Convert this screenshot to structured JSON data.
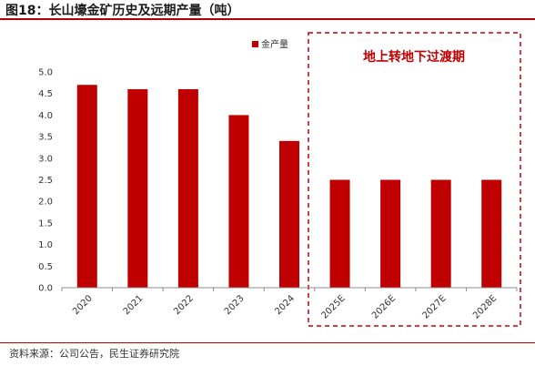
{
  "figure": {
    "title": "图18：长山壕金矿历史及远期产量（吨）",
    "source": "资料来源：公司公告，民生证券研究院"
  },
  "chart_data": {
    "type": "bar",
    "title": "",
    "xlabel": "",
    "ylabel": "",
    "categories": [
      "2020",
      "2021",
      "2022",
      "2023",
      "2024",
      "2025E",
      "2026E",
      "2027E",
      "2028E"
    ],
    "series": [
      {
        "name": "金产量",
        "values": [
          4.7,
          4.6,
          4.6,
          4.0,
          3.4,
          2.5,
          2.5,
          2.5,
          2.5
        ]
      }
    ],
    "ylim": [
      0,
      5.0
    ],
    "yticks": [
      "0.0",
      "0.5",
      "1.0",
      "1.5",
      "2.0",
      "2.5",
      "3.0",
      "3.5",
      "4.0",
      "4.5",
      "5.0"
    ],
    "grid": false,
    "legend_position": "top",
    "bar_color": "#c00000",
    "annotation": {
      "text": "地上转地下过渡期",
      "applies_to": [
        "2025E",
        "2026E",
        "2027E",
        "2028E"
      ],
      "style": "dashed-box",
      "color": "#c00000"
    }
  }
}
